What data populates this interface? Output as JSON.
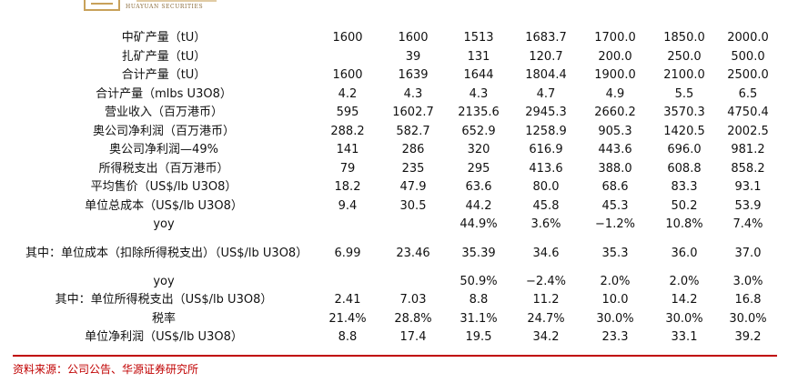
{
  "header": {
    "logo_subtitle": "HUAYUAN SECURITIES"
  },
  "rows": [
    {
      "label": "中矿产量（tU）",
      "values": [
        "1600",
        "1600",
        "1513",
        "1683.7",
        "1700.0",
        "1850.0",
        "2000.0"
      ]
    },
    {
      "label": "扎矿产量（tU）",
      "values": [
        "",
        "39",
        "131",
        "120.7",
        "200.0",
        "250.0",
        "500.0"
      ]
    },
    {
      "label": "合计产量（tU）",
      "values": [
        "1600",
        "1639",
        "1644",
        "1804.4",
        "1900.0",
        "2100.0",
        "2500.0"
      ]
    },
    {
      "label": "合计产量（mlbs U3O8）",
      "values": [
        "4.2",
        "4.3",
        "4.3",
        "4.7",
        "4.9",
        "5.5",
        "6.5"
      ]
    },
    {
      "label": "营业收入（百万港币）",
      "values": [
        "595",
        "1602.7",
        "2135.6",
        "2945.3",
        "2660.2",
        "3570.3",
        "4750.4"
      ]
    },
    {
      "label": "奥公司净利润（百万港币）",
      "values": [
        "288.2",
        "582.7",
        "652.9",
        "1258.9",
        "905.3",
        "1420.5",
        "2002.5"
      ]
    },
    {
      "label": "奥公司净利润—49%",
      "values": [
        "141",
        "286",
        "320",
        "616.9",
        "443.6",
        "696.0",
        "981.2"
      ]
    },
    {
      "label": "所得税支出（百万港币）",
      "values": [
        "79",
        "235",
        "295",
        "413.6",
        "388.0",
        "608.8",
        "858.2"
      ]
    },
    {
      "label": "平均售价（US$/lb U3O8）",
      "values": [
        "18.2",
        "47.9",
        "63.6",
        "80.0",
        "68.6",
        "83.3",
        "93.1"
      ]
    },
    {
      "label": "单位总成本（US$/lb U3O8）",
      "values": [
        "9.4",
        "30.5",
        "44.2",
        "45.8",
        "45.3",
        "50.2",
        "53.9"
      ]
    },
    {
      "label": "yoy",
      "values": [
        "",
        "",
        "44.9%",
        "3.6%",
        "−1.2%",
        "10.8%",
        "7.4%"
      ]
    },
    {
      "label": "其中：单位成本（扣除所得税支出）（US$/lb U3O8）",
      "values": [
        "6.99",
        "23.46",
        "35.39",
        "34.6",
        "35.3",
        "36.0",
        "37.0"
      ]
    },
    {
      "label": "yoy",
      "values": [
        "",
        "",
        "50.9%",
        "−2.4%",
        "2.0%",
        "2.0%",
        "3.0%"
      ]
    },
    {
      "label": "其中：单位所得税支出（US$/lb U3O8）",
      "values": [
        "2.41",
        "7.03",
        "8.8",
        "11.2",
        "10.0",
        "14.2",
        "16.8"
      ]
    },
    {
      "label": "税率",
      "values": [
        "21.4%",
        "28.8%",
        "31.1%",
        "24.7%",
        "30.0%",
        "30.0%",
        "30.0%"
      ]
    },
    {
      "label": "单位净利润（US$/lb U3O8）",
      "values": [
        "8.8",
        "17.4",
        "19.5",
        "34.2",
        "23.3",
        "33.1",
        "39.2"
      ]
    }
  ],
  "footer": {
    "source": "资料来源：公司公告、华源证券研究所"
  }
}
